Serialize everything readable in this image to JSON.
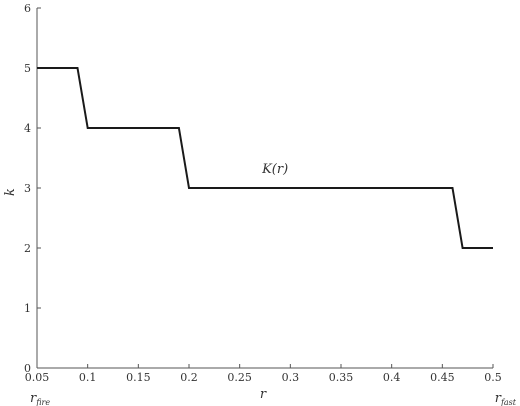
{
  "chart_data": {
    "type": "line",
    "title": "",
    "xlabel": "r",
    "ylabel": "k",
    "xlim": [
      0.05,
      0.5
    ],
    "ylim": [
      0,
      6
    ],
    "grid": false,
    "x_ticks": [
      0.05,
      0.1,
      0.15,
      0.2,
      0.25,
      0.3,
      0.35,
      0.4,
      0.45,
      0.5
    ],
    "x_tick_labels": [
      "0.05",
      "0.1",
      "0.15",
      "0.2",
      "0.25",
      "0.3",
      "0.35",
      "0.4",
      "0.45",
      "0.5"
    ],
    "y_ticks": [
      0,
      1,
      2,
      3,
      4,
      5,
      6
    ],
    "y_tick_labels": [
      "0",
      "1",
      "2",
      "3",
      "4",
      "5",
      "6"
    ],
    "series": [
      {
        "name": "",
        "x": [
          0.05,
          0.09,
          0.1,
          0.19,
          0.2,
          0.46,
          0.47,
          0.5
        ],
        "y": [
          5,
          5,
          4,
          4,
          3,
          3,
          2,
          2
        ]
      }
    ],
    "annotations": [
      {
        "text": "K(r)",
        "x": 0.285,
        "y": 3.25
      }
    ],
    "x_end_labels": {
      "left": {
        "main": "r",
        "sub": "fire"
      },
      "right": {
        "main": "r",
        "sub": "fast"
      }
    },
    "line_color": "#1a1a1a"
  }
}
